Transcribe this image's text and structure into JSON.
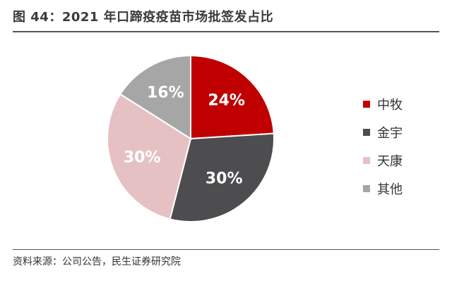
{
  "header": {
    "title": "图 44：2021 年口蹄疫疫苗市场批签发占比"
  },
  "footer": {
    "source": "资料来源：公司公告，民生证券研究院"
  },
  "chart_data": {
    "type": "pie",
    "categories": [
      "中牧",
      "金宇",
      "天康",
      "其他"
    ],
    "values": [
      24,
      30,
      30,
      16
    ],
    "labels": [
      "24%",
      "30%",
      "30%",
      "16%"
    ],
    "colors": [
      "#c00000",
      "#4d4d4f",
      "#e6c1c4",
      "#a6a6a6"
    ],
    "legend_position": "right"
  }
}
